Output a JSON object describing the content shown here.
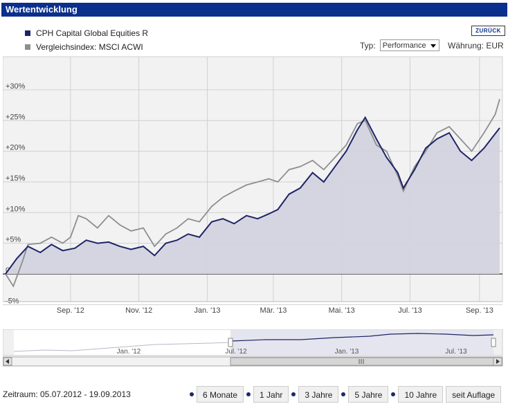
{
  "title": "Wertentwicklung",
  "legend": [
    {
      "name": "CPH Capital Global Equities R",
      "color": "#1e2366"
    },
    {
      "name": "Vergleichsindex: MSCI ACWI",
      "color": "#8e8e8e"
    }
  ],
  "back_label": "ZURÜCK",
  "type_label": "Typ:",
  "type_value": "Performance",
  "currency_label": "Währung: EUR",
  "period": "Zeitraum: 05.07.2012 - 19.09.2013",
  "range_buttons": [
    "6 Monate",
    "1 Jahr",
    "3 Jahre",
    "5 Jahre",
    "10 Jahre",
    "seit Auflage"
  ],
  "navigator_labels": [
    "Jan. '12",
    "Jul. '12",
    "Jan. '13",
    "Jul. '13"
  ],
  "chart_data": {
    "type": "line",
    "x_ticks": [
      "Sep. '12",
      "Nov. '12",
      "Jan. '13",
      "Mär. '13",
      "Mai. '13",
      "Jul. '13",
      "Sep. '13"
    ],
    "y_ticks": [
      "-5%",
      "0%",
      "+5%",
      "+10%",
      "+15%",
      "+20%",
      "+25%",
      "+30%"
    ],
    "ylim": [
      -5,
      30
    ],
    "series": [
      {
        "name": "CPH Capital Global Equities R",
        "color": "#1e2366",
        "points": [
          [
            "2012-07-05",
            0
          ],
          [
            "2012-07-15",
            2.5
          ],
          [
            "2012-07-25",
            4.5
          ],
          [
            "2012-08-05",
            3.5
          ],
          [
            "2012-08-15",
            4.8
          ],
          [
            "2012-08-25",
            3.8
          ],
          [
            "2012-09-05",
            4.2
          ],
          [
            "2012-09-15",
            5.5
          ],
          [
            "2012-09-25",
            5.0
          ],
          [
            "2012-10-05",
            5.2
          ],
          [
            "2012-10-15",
            4.5
          ],
          [
            "2012-10-25",
            4.0
          ],
          [
            "2012-11-05",
            4.5
          ],
          [
            "2012-11-15",
            3.0
          ],
          [
            "2012-11-25",
            5.0
          ],
          [
            "2012-12-05",
            5.5
          ],
          [
            "2012-12-15",
            6.5
          ],
          [
            "2012-12-25",
            6.0
          ],
          [
            "2013-01-05",
            8.5
          ],
          [
            "2013-01-15",
            9.0
          ],
          [
            "2013-01-25",
            8.2
          ],
          [
            "2013-02-05",
            9.5
          ],
          [
            "2013-02-15",
            9.0
          ],
          [
            "2013-02-25",
            9.8
          ],
          [
            "2013-03-05",
            10.5
          ],
          [
            "2013-03-15",
            13.0
          ],
          [
            "2013-03-25",
            14.0
          ],
          [
            "2013-04-05",
            16.5
          ],
          [
            "2013-04-15",
            15.0
          ],
          [
            "2013-04-25",
            17.5
          ],
          [
            "2013-05-05",
            20.0
          ],
          [
            "2013-05-15",
            23.5
          ],
          [
            "2013-05-22",
            25.5
          ],
          [
            "2013-06-01",
            22.0
          ],
          [
            "2013-06-10",
            19.0
          ],
          [
            "2013-06-20",
            16.5
          ],
          [
            "2013-06-25",
            14.0
          ],
          [
            "2013-07-05",
            17.0
          ],
          [
            "2013-07-15",
            20.5
          ],
          [
            "2013-07-25",
            22.0
          ],
          [
            "2013-08-05",
            23.0
          ],
          [
            "2013-08-15",
            20.0
          ],
          [
            "2013-08-25",
            18.5
          ],
          [
            "2013-09-05",
            20.5
          ],
          [
            "2013-09-19",
            23.8
          ]
        ]
      },
      {
        "name": "Vergleichsindex: MSCI ACWI",
        "color": "#8e8e8e",
        "points": [
          [
            "2012-07-05",
            0
          ],
          [
            "2012-07-12",
            -2.0
          ],
          [
            "2012-07-20",
            2.0
          ],
          [
            "2012-07-25",
            4.8
          ],
          [
            "2012-08-05",
            5.0
          ],
          [
            "2012-08-15",
            6.0
          ],
          [
            "2012-08-25",
            5.0
          ],
          [
            "2012-09-01",
            6.0
          ],
          [
            "2012-09-08",
            9.5
          ],
          [
            "2012-09-15",
            9.0
          ],
          [
            "2012-09-25",
            7.5
          ],
          [
            "2012-10-05",
            9.5
          ],
          [
            "2012-10-15",
            8.0
          ],
          [
            "2012-10-25",
            7.0
          ],
          [
            "2012-11-05",
            7.5
          ],
          [
            "2012-11-15",
            4.5
          ],
          [
            "2012-11-25",
            6.5
          ],
          [
            "2012-12-05",
            7.5
          ],
          [
            "2012-12-15",
            9.0
          ],
          [
            "2012-12-25",
            8.5
          ],
          [
            "2013-01-05",
            11.0
          ],
          [
            "2013-01-15",
            12.5
          ],
          [
            "2013-01-25",
            13.5
          ],
          [
            "2013-02-05",
            14.5
          ],
          [
            "2013-02-15",
            15.0
          ],
          [
            "2013-02-25",
            15.5
          ],
          [
            "2013-03-05",
            15.0
          ],
          [
            "2013-03-15",
            17.0
          ],
          [
            "2013-03-25",
            17.5
          ],
          [
            "2013-04-05",
            18.5
          ],
          [
            "2013-04-15",
            17.0
          ],
          [
            "2013-04-25",
            19.0
          ],
          [
            "2013-05-05",
            21.0
          ],
          [
            "2013-05-15",
            24.5
          ],
          [
            "2013-05-22",
            25.0
          ],
          [
            "2013-06-01",
            21.0
          ],
          [
            "2013-06-10",
            20.0
          ],
          [
            "2013-06-20",
            16.0
          ],
          [
            "2013-06-25",
            13.5
          ],
          [
            "2013-07-05",
            17.5
          ],
          [
            "2013-07-15",
            20.0
          ],
          [
            "2013-07-25",
            23.0
          ],
          [
            "2013-08-05",
            24.0
          ],
          [
            "2013-08-15",
            22.0
          ],
          [
            "2013-08-25",
            20.0
          ],
          [
            "2013-09-05",
            23.0
          ],
          [
            "2013-09-15",
            26.0
          ],
          [
            "2013-09-19",
            28.5
          ]
        ]
      }
    ]
  }
}
